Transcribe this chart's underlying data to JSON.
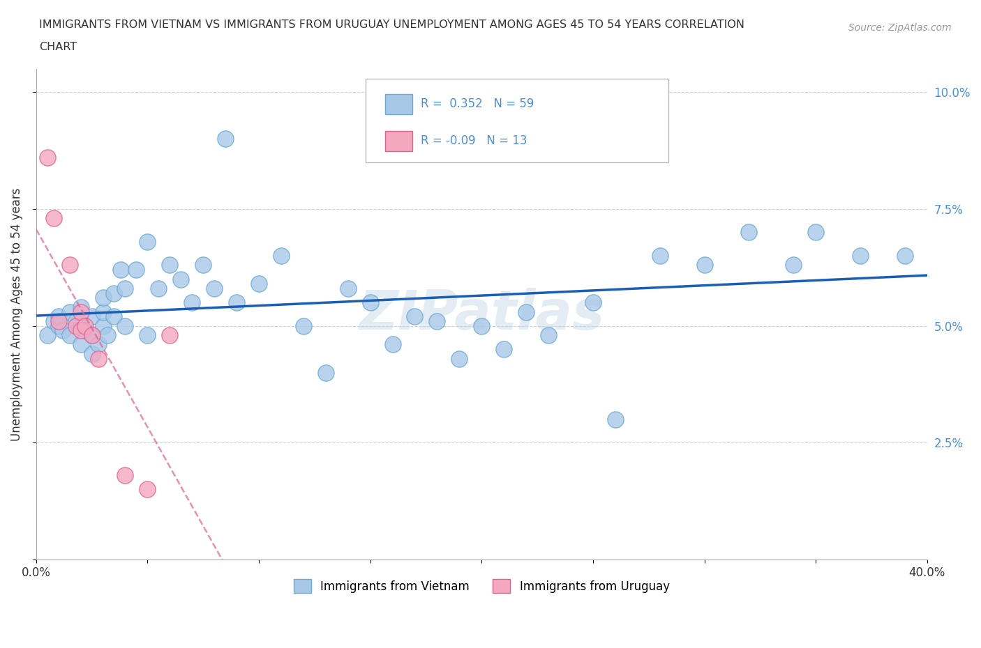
{
  "title_line1": "IMMIGRANTS FROM VIETNAM VS IMMIGRANTS FROM URUGUAY UNEMPLOYMENT AMONG AGES 45 TO 54 YEARS CORRELATION",
  "title_line2": "CHART",
  "source_text": "Source: ZipAtlas.com",
  "ylabel": "Unemployment Among Ages 45 to 54 years",
  "xlim": [
    0.0,
    0.4
  ],
  "ylim": [
    0.0,
    0.105
  ],
  "xticks": [
    0.0,
    0.05,
    0.1,
    0.15,
    0.2,
    0.25,
    0.3,
    0.35,
    0.4
  ],
  "yticks": [
    0.0,
    0.025,
    0.05,
    0.075,
    0.1
  ],
  "ytick_labels": [
    "",
    "2.5%",
    "5.0%",
    "7.5%",
    "10.0%"
  ],
  "xtick_labels": [
    "0.0%",
    "",
    "",
    "",
    "",
    "",
    "",
    "",
    "40.0%"
  ],
  "r_vietnam": 0.352,
  "n_vietnam": 59,
  "r_uruguay": -0.09,
  "n_uruguay": 13,
  "vietnam_color": "#a8c8e8",
  "vietnam_edge": "#6aaad4",
  "uruguay_color": "#f4a8c0",
  "uruguay_edge": "#e06090",
  "trend_vietnam_color": "#1a5fb4",
  "trend_uruguay_color": "#e06090",
  "tick_color": "#4a90d9",
  "watermark_color": "#c8d8e8",
  "vietnam_scatter_x": [
    0.005,
    0.008,
    0.01,
    0.01,
    0.012,
    0.015,
    0.015,
    0.018,
    0.02,
    0.02,
    0.02,
    0.022,
    0.025,
    0.025,
    0.025,
    0.028,
    0.03,
    0.03,
    0.03,
    0.032,
    0.035,
    0.035,
    0.038,
    0.04,
    0.04,
    0.045,
    0.05,
    0.05,
    0.055,
    0.06,
    0.065,
    0.07,
    0.075,
    0.08,
    0.085,
    0.09,
    0.1,
    0.11,
    0.12,
    0.13,
    0.14,
    0.15,
    0.16,
    0.17,
    0.18,
    0.19,
    0.2,
    0.21,
    0.22,
    0.23,
    0.25,
    0.26,
    0.28,
    0.3,
    0.32,
    0.34,
    0.35,
    0.37,
    0.39
  ],
  "vietnam_scatter_y": [
    0.048,
    0.051,
    0.05,
    0.052,
    0.049,
    0.048,
    0.053,
    0.051,
    0.046,
    0.05,
    0.054,
    0.049,
    0.044,
    0.048,
    0.052,
    0.046,
    0.05,
    0.053,
    0.056,
    0.048,
    0.052,
    0.057,
    0.062,
    0.05,
    0.058,
    0.062,
    0.048,
    0.068,
    0.058,
    0.063,
    0.06,
    0.055,
    0.063,
    0.058,
    0.09,
    0.055,
    0.059,
    0.065,
    0.05,
    0.04,
    0.058,
    0.055,
    0.046,
    0.052,
    0.051,
    0.043,
    0.05,
    0.045,
    0.053,
    0.048,
    0.055,
    0.03,
    0.065,
    0.063,
    0.07,
    0.063,
    0.07,
    0.065,
    0.065
  ],
  "uruguay_scatter_x": [
    0.005,
    0.008,
    0.01,
    0.015,
    0.018,
    0.02,
    0.02,
    0.022,
    0.025,
    0.028,
    0.04,
    0.05,
    0.06
  ],
  "uruguay_scatter_y": [
    0.086,
    0.073,
    0.051,
    0.063,
    0.05,
    0.049,
    0.053,
    0.05,
    0.048,
    0.043,
    0.018,
    0.015,
    0.048
  ]
}
